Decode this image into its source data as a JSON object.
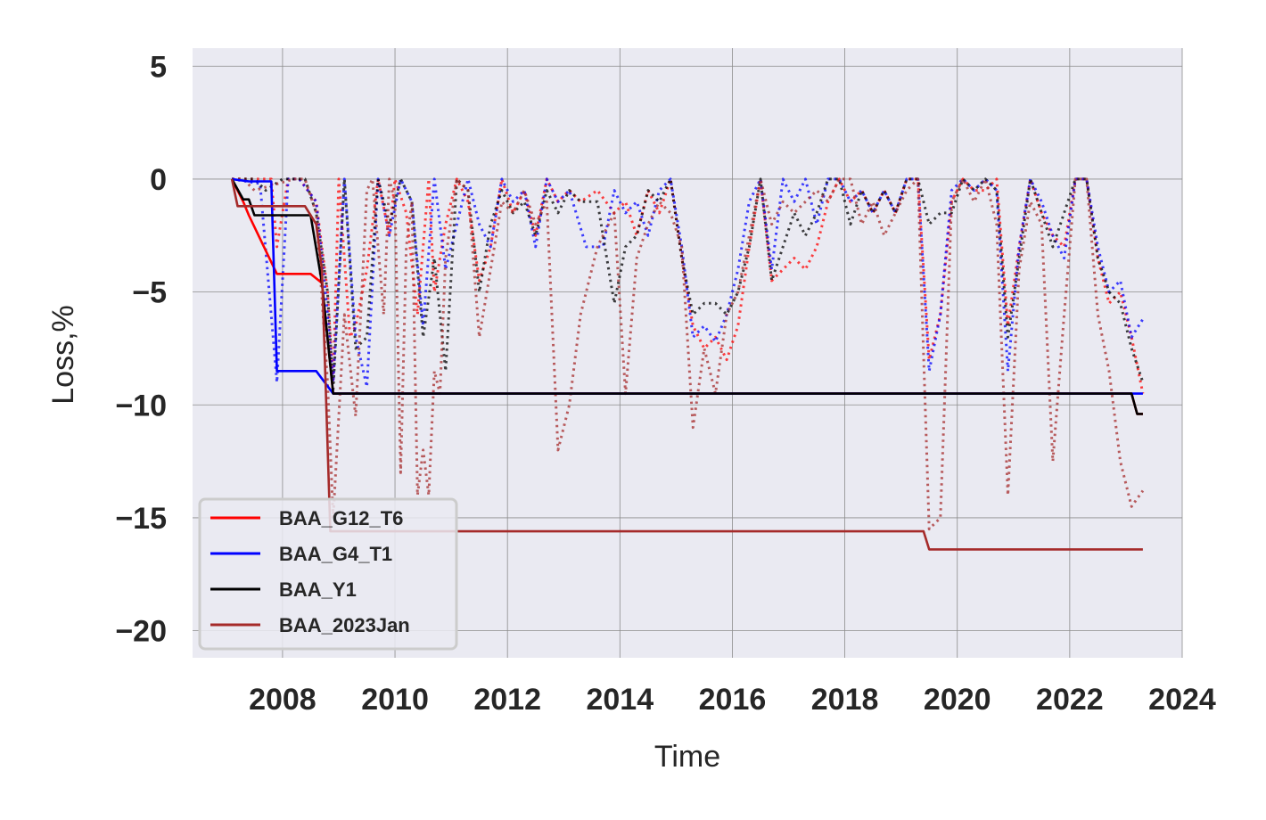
{
  "chart_data": {
    "type": "line",
    "xlabel": "Time",
    "ylabel": "Loss,%",
    "xlim": [
      2006.4,
      2024.0
    ],
    "ylim": [
      -21.2,
      5.8
    ],
    "xticks": [
      2008,
      2010,
      2012,
      2014,
      2016,
      2018,
      2020,
      2022,
      2024
    ],
    "yticks": [
      5,
      0,
      -5,
      -10,
      -15,
      -20
    ],
    "ytick_labels": [
      "5",
      "0",
      "−5",
      "−10",
      "−15",
      "−20"
    ],
    "grid": true,
    "legend_position": "lower-left",
    "series": [
      {
        "name": "BAA_G12_T6",
        "color": "#ff0000",
        "style": "solid",
        "x": [
          2007.1,
          2007.3,
          2007.4,
          2007.9,
          2008.5,
          2008.7,
          2008.9,
          2023.1,
          2023.2,
          2023.3
        ],
        "y": [
          0,
          -1.0,
          -1.6,
          -4.2,
          -4.2,
          -4.6,
          -9.5,
          -9.5,
          -10.4,
          -10.4
        ]
      },
      {
        "name": "BAA_G4_T1",
        "color": "#0000ff",
        "style": "solid",
        "x": [
          2007.1,
          2007.4,
          2007.8,
          2007.9,
          2008.6,
          2008.9,
          2023.1,
          2023.3
        ],
        "y": [
          0,
          -0.1,
          -0.1,
          -8.5,
          -8.5,
          -9.5,
          -9.5,
          -9.5
        ]
      },
      {
        "name": "BAA_Y1",
        "color": "#000000",
        "style": "solid",
        "x": [
          2007.1,
          2007.3,
          2007.4,
          2007.5,
          2008.5,
          2008.7,
          2008.9,
          2023.1,
          2023.2,
          2023.3
        ],
        "y": [
          0,
          -0.9,
          -0.9,
          -1.6,
          -1.6,
          -4.6,
          -9.5,
          -9.5,
          -10.4,
          -10.4
        ]
      },
      {
        "name": "BAA_2023Jan",
        "color": "#a52a2a",
        "style": "solid",
        "x": [
          2007.1,
          2007.2,
          2008.4,
          2008.6,
          2008.7,
          2008.85,
          2019.4,
          2019.5,
          2023.3
        ],
        "y": [
          0,
          -1.2,
          -1.2,
          -2.0,
          -4.0,
          -15.6,
          -15.6,
          -16.4,
          -16.4
        ]
      },
      {
        "name": "",
        "color": "#ff0000",
        "style": "dotted",
        "x": [
          2007.1,
          2007.5,
          2007.8,
          2007.9,
          2008.1,
          2008.3,
          2008.6,
          2008.8,
          2008.9,
          2009.0,
          2009.2,
          2009.3,
          2009.5,
          2009.7,
          2009.9,
          2010.0,
          2010.2,
          2010.4,
          2010.6,
          2010.7,
          2010.9,
          2011.1,
          2011.3,
          2011.5,
          2011.7,
          2011.9,
          2012.1,
          2012.3,
          2012.5,
          2012.7,
          2012.9,
          2013.1,
          2013.3,
          2013.6,
          2013.9,
          2014.1,
          2014.3,
          2014.5,
          2014.7,
          2014.9,
          2015.1,
          2015.3,
          2015.5,
          2015.7,
          2015.9,
          2016.1,
          2016.3,
          2016.5,
          2016.7,
          2016.9,
          2017.1,
          2017.3,
          2017.5,
          2017.7,
          2017.9,
          2018.1,
          2018.3,
          2018.5,
          2018.7,
          2018.9,
          2019.1,
          2019.3,
          2019.5,
          2019.7,
          2019.9,
          2020.1,
          2020.3,
          2020.5,
          2020.7,
          2020.9,
          2021.1,
          2021.3,
          2021.5,
          2021.7,
          2021.9,
          2022.1,
          2022.3,
          2022.5,
          2022.7,
          2022.9,
          2023.1,
          2023.3
        ],
        "y": [
          0,
          0,
          0,
          -3.0,
          0,
          0,
          -1.0,
          -5.0,
          -9.0,
          0,
          -7.0,
          -6.5,
          -4.0,
          0,
          -2.5,
          0,
          -1.5,
          -6.0,
          0,
          -5.0,
          -2.0,
          0,
          -1.0,
          -4.5,
          -3.0,
          0,
          -1.5,
          -0.5,
          -2.5,
          0,
          -1.0,
          -0.5,
          -1.0,
          -0.5,
          -1.5,
          -1.0,
          -2.5,
          -0.5,
          -1.5,
          0,
          -3.5,
          -6.5,
          -7.5,
          -7.0,
          -8.0,
          -6.5,
          -3.0,
          0,
          -4.5,
          -4.0,
          -3.5,
          -4.0,
          -3.0,
          -1.0,
          0,
          -1.0,
          -0.5,
          -1.5,
          -0.5,
          -1.5,
          0,
          0,
          -8.0,
          -6.0,
          -1.0,
          0,
          -0.5,
          -0.5,
          0,
          -6.5,
          -3.0,
          0,
          -1.5,
          -2.5,
          -3.0,
          0,
          0,
          -3.5,
          -5.5,
          -5.0,
          -7.0,
          -9.5
        ]
      },
      {
        "name": "",
        "color": "#0000ff",
        "style": "dotted",
        "x": [
          2007.1,
          2007.6,
          2007.9,
          2008.1,
          2008.3,
          2008.6,
          2008.8,
          2008.9,
          2009.1,
          2009.3,
          2009.5,
          2009.7,
          2009.9,
          2010.1,
          2010.3,
          2010.5,
          2010.7,
          2010.9,
          2011.1,
          2011.3,
          2011.5,
          2011.7,
          2011.9,
          2012.1,
          2012.3,
          2012.5,
          2012.7,
          2012.9,
          2013.1,
          2013.4,
          2013.7,
          2013.9,
          2014.1,
          2014.3,
          2014.5,
          2014.7,
          2014.9,
          2015.1,
          2015.3,
          2015.5,
          2015.7,
          2015.9,
          2016.1,
          2016.3,
          2016.5,
          2016.7,
          2016.9,
          2017.1,
          2017.3,
          2017.5,
          2017.7,
          2017.9,
          2018.1,
          2018.3,
          2018.5,
          2018.7,
          2018.9,
          2019.1,
          2019.3,
          2019.5,
          2019.7,
          2019.9,
          2020.1,
          2020.3,
          2020.5,
          2020.7,
          2020.9,
          2021.1,
          2021.3,
          2021.5,
          2021.7,
          2021.9,
          2022.1,
          2022.3,
          2022.5,
          2022.7,
          2022.9,
          2023.1,
          2023.3
        ],
        "y": [
          0,
          -0.2,
          -9.0,
          0,
          0,
          -1.0,
          -6.0,
          -9.0,
          0,
          -7.0,
          -9.2,
          0,
          -2.5,
          0,
          -1.0,
          -6.5,
          0,
          -4.0,
          -2.0,
          0,
          -2.0,
          -3.0,
          0,
          -1.0,
          -0.5,
          -3.0,
          0,
          -1.0,
          -0.5,
          -3.0,
          -3.0,
          -0.5,
          -1.5,
          -1.0,
          -2.5,
          -0.5,
          0,
          -3.0,
          -7.0,
          -6.5,
          -7.2,
          -6.0,
          -4.0,
          -1.0,
          0,
          -4.0,
          0,
          -1.0,
          0,
          -2.0,
          0,
          0,
          -1.0,
          -0.5,
          -1.5,
          -0.5,
          -1.5,
          0,
          0,
          -8.5,
          -6.0,
          -0.5,
          0,
          -0.5,
          0,
          -0.5,
          -8.5,
          -3.0,
          0,
          -1.0,
          -2.5,
          -3.5,
          0,
          0,
          -3.0,
          -5.0,
          -4.5,
          -7.0,
          -6.2
        ]
      },
      {
        "name": "",
        "color": "#000000",
        "style": "dotted",
        "x": [
          2007.1,
          2007.5,
          2007.7,
          2008.0,
          2008.2,
          2008.4,
          2008.6,
          2008.8,
          2008.9,
          2009.1,
          2009.3,
          2009.5,
          2009.7,
          2009.9,
          2010.1,
          2010.3,
          2010.5,
          2010.7,
          2010.9,
          2011.1,
          2011.3,
          2011.5,
          2011.7,
          2011.9,
          2012.1,
          2012.3,
          2012.5,
          2012.7,
          2012.9,
          2013.1,
          2013.3,
          2013.6,
          2013.9,
          2014.1,
          2014.3,
          2014.5,
          2014.7,
          2014.9,
          2015.1,
          2015.3,
          2015.5,
          2015.7,
          2015.9,
          2016.1,
          2016.3,
          2016.5,
          2016.7,
          2016.9,
          2017.1,
          2017.3,
          2017.5,
          2017.7,
          2017.9,
          2018.1,
          2018.3,
          2018.5,
          2018.7,
          2018.9,
          2019.1,
          2019.3,
          2019.5,
          2019.7,
          2019.9,
          2020.1,
          2020.3,
          2020.5,
          2020.7,
          2020.9,
          2021.1,
          2021.3,
          2021.5,
          2021.7,
          2021.9,
          2022.1,
          2022.3,
          2022.5,
          2022.7,
          2022.9,
          2023.1,
          2023.3
        ],
        "y": [
          0,
          0,
          -0.5,
          0,
          0,
          0,
          -1.5,
          -5.0,
          -9.3,
          0,
          -7.5,
          -7.0,
          0,
          -2.0,
          0,
          -1.0,
          -7.0,
          -3.5,
          -8.5,
          0,
          -0.5,
          -5.0,
          -2.0,
          -0.5,
          -1.5,
          -1.0,
          -2.5,
          -0.5,
          -1.5,
          -0.5,
          -1.0,
          -1.0,
          -5.5,
          -3.0,
          -2.5,
          -0.5,
          -1.0,
          0,
          -3.5,
          -6.0,
          -5.5,
          -5.5,
          -6.0,
          -5.0,
          -3.0,
          0,
          -4.5,
          -3.0,
          -1.5,
          -2.5,
          -1.5,
          0,
          0,
          -2.0,
          -0.5,
          -1.5,
          -0.5,
          -1.5,
          0,
          0,
          -2.0,
          -1.5,
          -1.5,
          0,
          -0.5,
          0,
          -0.5,
          -7.0,
          -3.5,
          0,
          -1.5,
          -3.0,
          -1.5,
          0,
          0,
          -3.5,
          -5.0,
          -5.5,
          -7.5,
          -9.0
        ]
      },
      {
        "name": "",
        "color": "#a52a2a",
        "style": "dotted",
        "x": [
          2007.1,
          2007.3,
          2007.5,
          2008.2,
          2008.4,
          2008.6,
          2008.8,
          2008.9,
          2009.1,
          2009.3,
          2009.5,
          2009.6,
          2009.8,
          2009.9,
          2010.0,
          2010.1,
          2010.2,
          2010.3,
          2010.4,
          2010.5,
          2010.6,
          2010.7,
          2010.8,
          2010.9,
          2011.1,
          2011.3,
          2011.5,
          2011.7,
          2011.9,
          2012.1,
          2012.3,
          2012.5,
          2012.7,
          2012.9,
          2013.1,
          2013.3,
          2013.6,
          2013.9,
          2014.1,
          2014.3,
          2014.5,
          2014.7,
          2014.9,
          2015.1,
          2015.3,
          2015.5,
          2015.7,
          2015.9,
          2016.1,
          2016.3,
          2016.5,
          2016.7,
          2016.9,
          2017.1,
          2017.3,
          2017.5,
          2017.7,
          2017.9,
          2018.1,
          2018.3,
          2018.5,
          2018.7,
          2018.9,
          2019.1,
          2019.3,
          2019.5,
          2019.7,
          2019.9,
          2020.1,
          2020.3,
          2020.5,
          2020.7,
          2020.9,
          2021.1,
          2021.3,
          2021.5,
          2021.7,
          2021.9,
          2022.1,
          2022.3,
          2022.5,
          2022.7,
          2022.9,
          2023.1,
          2023.3
        ],
        "y": [
          0,
          0,
          -0.5,
          0,
          0,
          -1.5,
          -9.0,
          -15.0,
          -6.0,
          -10.5,
          -0.5,
          0,
          -6.0,
          0,
          -1.0,
          -13.0,
          -3.0,
          -1.0,
          -14.0,
          -12.0,
          -14.0,
          -8.5,
          -9.5,
          -3.5,
          0,
          -0.5,
          -7.0,
          -4.0,
          -1.0,
          -1.5,
          -0.5,
          -2.0,
          -1.0,
          -12.0,
          -10.0,
          -6.0,
          -3.0,
          -1.5,
          -9.5,
          -3.5,
          -2.0,
          -1.0,
          -1.5,
          -3.0,
          -11.0,
          -7.5,
          -9.5,
          -6.0,
          -5.0,
          -2.5,
          0,
          -2.0,
          -1.0,
          -1.5,
          -1.0,
          -0.5,
          -1.0,
          0,
          0,
          -2.0,
          -1.0,
          -2.5,
          -1.5,
          -0.5,
          0,
          -15.5,
          -15.0,
          -1.0,
          0,
          -1.0,
          0,
          -2.0,
          -14.0,
          -4.0,
          -1.0,
          -2.0,
          -12.5,
          -6.0,
          0,
          0,
          -6.0,
          -8.5,
          -12.5,
          -14.5,
          -13.8
        ]
      }
    ]
  }
}
